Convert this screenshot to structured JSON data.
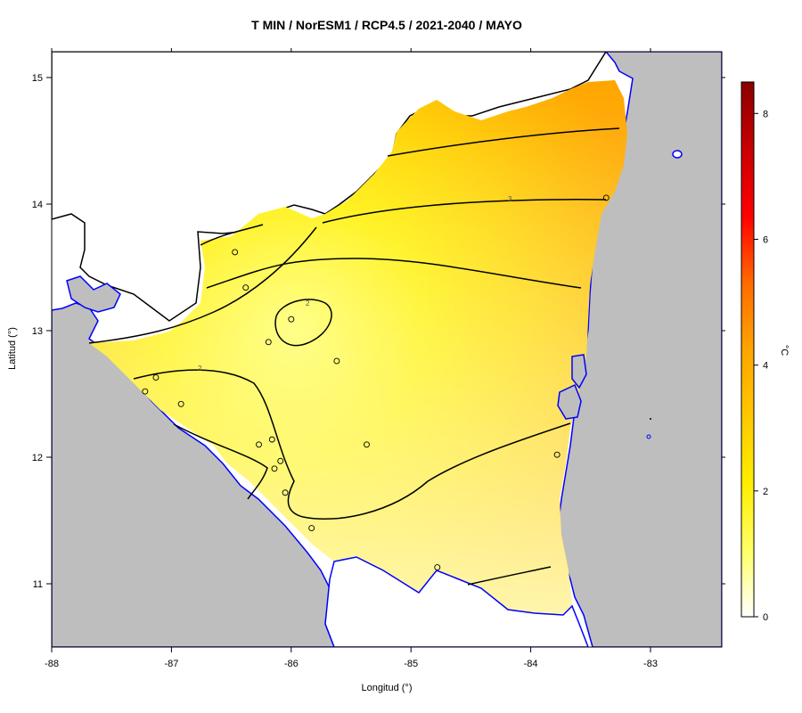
{
  "title": "T MIN / NorESM1 / RCP4.5 / 2021-2040 / MAYO",
  "x_axis": {
    "label": "Longitud (°)",
    "ticks": [
      "-88",
      "-87",
      "-86",
      "-85",
      "-84",
      "-83"
    ]
  },
  "y_axis": {
    "label": "Latitud (°)",
    "ticks": [
      "11",
      "12",
      "13",
      "14",
      "15"
    ]
  },
  "colorbar": {
    "units": "°C",
    "ticks": [
      "0",
      "2",
      "4",
      "6",
      "8"
    ],
    "colors": [
      "#ffffff",
      "#ffff66",
      "#ffee00",
      "#ffc800",
      "#ffa500",
      "#ff6a00",
      "#ff0000",
      "#c80000",
      "#8b0000"
    ]
  },
  "contour_labels": [
    "2",
    "2",
    "3"
  ],
  "colors": {
    "ocean": "#bebebe",
    "coast": "#0000ff",
    "border": "#000000",
    "contour": "#000000"
  },
  "chart_data": {
    "type": "heatmap",
    "title": "T MIN / NorESM1 / RCP4.5 / 2021-2040 / MAYO",
    "xlabel": "Longitud (°)",
    "ylabel": "Latitud (°)",
    "xlim": [
      -88,
      -82.4
    ],
    "ylim": [
      10.5,
      15.2
    ],
    "value_range": [
      0,
      8.5
    ],
    "contour_levels": [
      2,
      3
    ],
    "stations": [
      {
        "lon": -86.47,
        "lat": 13.62
      },
      {
        "lon": -86.38,
        "lat": 13.34
      },
      {
        "lon": -86.0,
        "lat": 13.09
      },
      {
        "lon": -86.19,
        "lat": 12.91
      },
      {
        "lon": -85.62,
        "lat": 12.76
      },
      {
        "lon": -87.13,
        "lat": 12.63
      },
      {
        "lon": -87.22,
        "lat": 12.52
      },
      {
        "lon": -86.92,
        "lat": 12.42
      },
      {
        "lon": -86.27,
        "lat": 12.1
      },
      {
        "lon": -86.16,
        "lat": 12.14
      },
      {
        "lon": -85.37,
        "lat": 12.1
      },
      {
        "lon": -86.09,
        "lat": 11.97
      },
      {
        "lon": -86.14,
        "lat": 11.91
      },
      {
        "lon": -86.05,
        "lat": 11.72
      },
      {
        "lon": -85.83,
        "lat": 11.44
      },
      {
        "lon": -84.78,
        "lat": 11.13
      },
      {
        "lon": -83.78,
        "lat": 12.02
      },
      {
        "lon": -83.37,
        "lat": 14.05
      }
    ]
  }
}
